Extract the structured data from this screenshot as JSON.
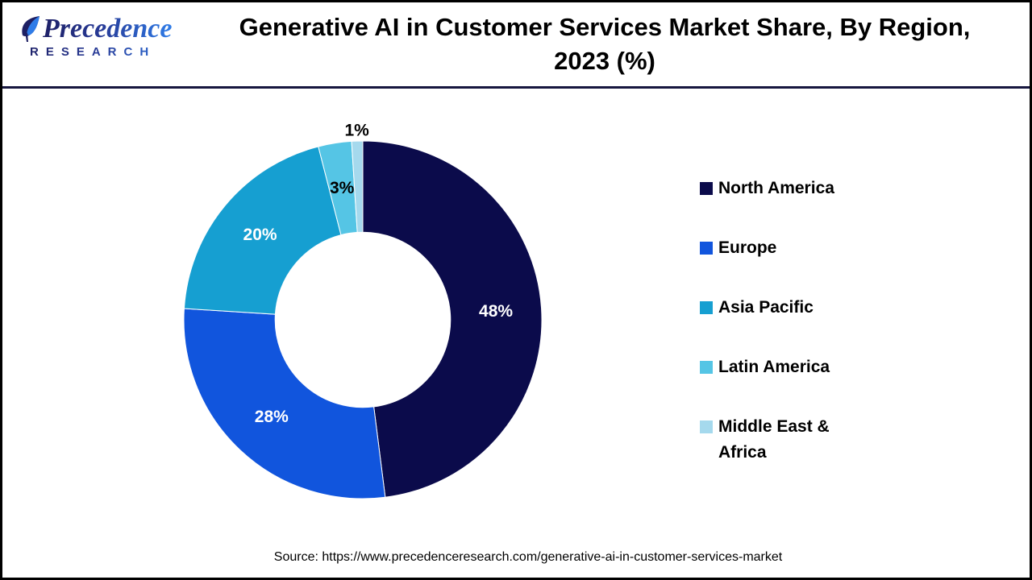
{
  "header": {
    "logo": {
      "wordmark": "Precedence",
      "subtext": "RESEARCH"
    },
    "title_line1": "Generative AI in Customer Services Market Share, By Region,",
    "title_line2": "2023 (%)"
  },
  "chart_data": {
    "type": "pie",
    "subtype": "donut",
    "title": "Generative AI in Customer Services Market Share, By Region, 2023 (%)",
    "unit": "%",
    "categories": [
      "North America",
      "Europe",
      "Asia Pacific",
      "Latin America",
      "Middle East & Africa"
    ],
    "values": [
      48,
      28,
      20,
      3,
      1
    ],
    "labels": [
      "48%",
      "28%",
      "20%",
      "3%",
      "1%"
    ],
    "colors": [
      "#0B0B4B",
      "#1155DD",
      "#169FD1",
      "#55C5E5",
      "#A5D9ED"
    ],
    "label_colors": [
      "#ffffff",
      "#ffffff",
      "#ffffff",
      "#000000",
      "#000000"
    ],
    "label_placement": [
      "inside",
      "inside",
      "inside",
      "inside",
      "outside"
    ],
    "donut_hole_ratio": 0.49,
    "start_angle_deg": 0,
    "direction": "clockwise",
    "legend_position": "right",
    "grid": false
  },
  "footer": {
    "source": "Source: https://www.precedenceresearch.com/generative-ai-in-customer-services-market"
  }
}
